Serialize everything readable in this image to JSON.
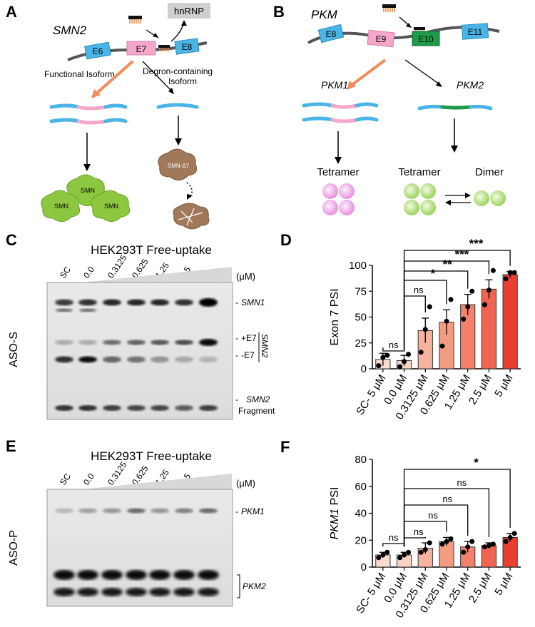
{
  "panels": {
    "A": "A",
    "B": "B",
    "C": "C",
    "D": "D",
    "E": "E",
    "F": "F"
  },
  "panel_a": {
    "gene": "SMN2",
    "exons": [
      "E6",
      "E7",
      "E8"
    ],
    "hnrnp": "hnRNP",
    "functional_label": "Functional Isoform",
    "degron_label_1": "Degron-containing",
    "degron_label_2": "Isoform",
    "protein": "SMN",
    "protein_delta": "SMN-Δ7"
  },
  "panel_b": {
    "gene": "PKM",
    "exons": [
      "E8",
      "E9",
      "E10",
      "E11"
    ],
    "iso1": "PKM1",
    "iso2": "PKM2",
    "tetramer": "Tetramer",
    "dimer": "Dimer"
  },
  "panel_c": {
    "title": "HEK293T Free-uptake",
    "side_label": "ASO-S",
    "lanes": [
      "SC",
      "0.0",
      "0.3125",
      "0.625",
      "1.25",
      "2.5",
      "5"
    ],
    "unit": "(μM)",
    "band_labels": {
      "smn1": "SMN1",
      "plus_e7": "+E7",
      "minus_e7": "-E7",
      "smn2_bracket": "SMN2",
      "frag1": "SMN2",
      "frag2": "Fragment"
    }
  },
  "panel_e": {
    "title": "HEK293T Free-uptake",
    "side_label": "ASO-P",
    "lanes": [
      "SC",
      "0.0",
      "0.3125",
      "0.625",
      "1.25",
      "2.5",
      "5"
    ],
    "unit": "(μM)",
    "band_labels": {
      "pkm1": "PKM1",
      "pkm2": "PKM2"
    }
  },
  "chart_data": [
    {
      "type": "bar",
      "ylabel": "Exon 7 PSI",
      "categories": [
        "SC- 5 μM",
        "0.0 μM",
        "0.3125 μM",
        "0.625 μM",
        "1.25 μM",
        "2.5 μM",
        "5 μM"
      ],
      "values": [
        9,
        8,
        37,
        45,
        62,
        77,
        91
      ],
      "errors": [
        6,
        5,
        12,
        12,
        10,
        9,
        3
      ],
      "points": [
        [
          3,
          11,
          13
        ],
        [
          2,
          7,
          14
        ],
        [
          16,
          38,
          60
        ],
        [
          22,
          46,
          67
        ],
        [
          48,
          60,
          75
        ],
        [
          62,
          76,
          95
        ],
        [
          87,
          93,
          93
        ]
      ],
      "ylim": [
        0,
        100
      ],
      "yticks": [
        0,
        25,
        50,
        75,
        100
      ],
      "colors": [
        "#f9dccd",
        "#f9d2c2",
        "#f6b39d",
        "#f49c82",
        "#f2806a",
        "#ef6552",
        "#ec3e2e"
      ],
      "significance": [
        {
          "from": 0,
          "to": 1,
          "label": "ns"
        },
        {
          "from": 1,
          "to": 2,
          "label": "ns"
        },
        {
          "from": 1,
          "to": 3,
          "label": "*"
        },
        {
          "from": 1,
          "to": 4,
          "label": "**"
        },
        {
          "from": 1,
          "to": 5,
          "label": "***"
        },
        {
          "from": 1,
          "to": 6,
          "label": "***"
        }
      ]
    },
    {
      "type": "bar",
      "ylabel": "PKM1 PSI",
      "categories": [
        "SC- 5 μM",
        "0.0 μM",
        "0.3125 μM",
        "0.625 μM",
        "1.25 μM",
        "2.5 μM",
        "5 μM"
      ],
      "values": [
        9,
        9,
        14,
        19,
        15,
        16,
        22
      ],
      "errors": [
        2,
        2,
        4,
        3,
        4,
        2,
        3
      ],
      "points": [
        [
          7,
          9,
          11
        ],
        [
          7,
          9,
          11
        ],
        [
          11,
          13,
          18
        ],
        [
          17,
          19,
          21
        ],
        [
          11,
          15,
          19
        ],
        [
          15,
          16,
          17
        ],
        [
          19,
          22,
          25
        ]
      ],
      "ylim": [
        0,
        80
      ],
      "yticks": [
        0,
        20,
        40,
        60,
        80
      ],
      "colors": [
        "#f9dccd",
        "#f9d2c2",
        "#f6b39d",
        "#f49c82",
        "#f2806a",
        "#ef6552",
        "#ec3e2e"
      ],
      "significance": [
        {
          "from": 0,
          "to": 1,
          "label": "ns"
        },
        {
          "from": 1,
          "to": 2,
          "label": "ns"
        },
        {
          "from": 1,
          "to": 3,
          "label": "ns"
        },
        {
          "from": 1,
          "to": 4,
          "label": "ns"
        },
        {
          "from": 1,
          "to": 5,
          "label": "ns"
        },
        {
          "from": 1,
          "to": 6,
          "label": "*"
        }
      ]
    }
  ]
}
